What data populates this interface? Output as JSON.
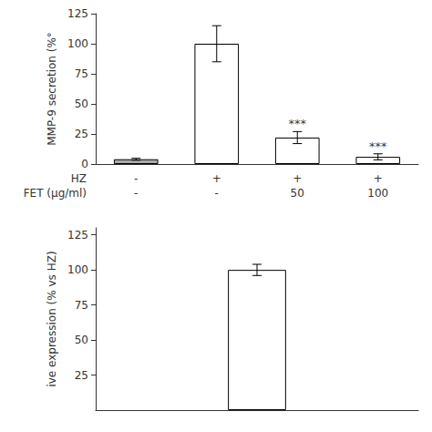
{
  "chart_data": [
    {
      "type": "bar",
      "y_label": "MMP-9 secretion (%°",
      "categories": [
        null,
        null,
        null,
        null
      ],
      "x_rows": [
        {
          "label": "HZ",
          "labels": [
            "-",
            "+",
            "+",
            "+"
          ]
        },
        {
          "label": "FET (μg/ml)",
          "labels": [
            "-",
            "-",
            "50",
            "100"
          ]
        }
      ],
      "values": [
        4,
        100,
        22,
        6
      ],
      "errors": [
        0.8,
        15,
        5,
        2.5
      ],
      "colors": [
        "#aaaaaa",
        "white",
        "white",
        "white"
      ],
      "ylim": [
        0,
        125
      ],
      "yticks": [
        0,
        25,
        50,
        75,
        100,
        125
      ],
      "grid": false,
      "annotations": [
        {
          "text": "***",
          "category_index": 2,
          "y": 28.5
        },
        {
          "text": "***",
          "category_index": 3,
          "y": 10
        }
      ]
    },
    {
      "type": "bar",
      "y_label": "ive expression (% vs HZ)",
      "categories": [
        null
      ],
      "values": [
        100
      ],
      "errors": [
        4
      ],
      "color": "white",
      "ylim": [
        0,
        130
      ],
      "yticks": [
        25,
        50,
        75,
        100,
        125
      ],
      "grid": false
    }
  ]
}
